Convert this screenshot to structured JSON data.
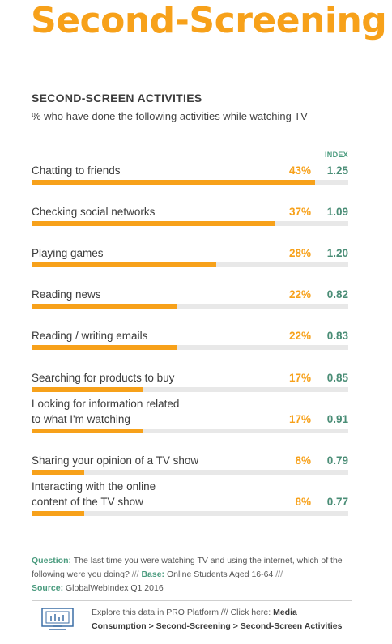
{
  "page": {
    "title": "Second-Screening"
  },
  "chart_data": {
    "type": "bar",
    "title": "SECOND-SCREEN ACTIVITIES",
    "subtitle": "% who have done the following activities while watching TV",
    "index_header": "INDEX",
    "xlim": [
      0,
      100
    ],
    "categories": [
      "Chatting to friends",
      "Checking social networks",
      "Playing games",
      "Reading news",
      "Reading / writing emails",
      "Searching for products to buy",
      "Looking for information related to what I'm watching",
      "Sharing your opinion of a TV show",
      "Interacting with the online content of the TV show"
    ],
    "series": [
      {
        "values": [
          43,
          37,
          28,
          22,
          22,
          17,
          17,
          8,
          8
        ]
      },
      {
        "values": [
          1.25,
          1.09,
          1.2,
          0.82,
          0.83,
          0.85,
          0.91,
          0.79,
          0.77
        ]
      }
    ],
    "rows": [
      {
        "label": "Chatting to friends",
        "pct": 43,
        "pct_label": "43%",
        "index": "1.25"
      },
      {
        "label": "Checking social networks",
        "pct": 37,
        "pct_label": "37%",
        "index": "1.09"
      },
      {
        "label": "Playing games",
        "pct": 28,
        "pct_label": "28%",
        "index": "1.20"
      },
      {
        "label": "Reading news",
        "pct": 22,
        "pct_label": "22%",
        "index": "0.82"
      },
      {
        "label": "Reading / writing emails",
        "pct": 22,
        "pct_label": "22%",
        "index": "0.83"
      },
      {
        "label": "Searching for products to buy",
        "pct": 17,
        "pct_label": "17%",
        "index": "0.85"
      },
      {
        "label": "Looking for information related\nto what I'm watching",
        "pct": 17,
        "pct_label": "17%",
        "index": "0.91"
      },
      {
        "label": "Sharing your opinion of a TV show",
        "pct": 8,
        "pct_label": "8%",
        "index": "0.79"
      },
      {
        "label": "Interacting with the online\ncontent of the TV show",
        "pct": 8,
        "pct_label": "8%",
        "index": "0.77"
      }
    ],
    "colors": {
      "bar": "#f7a11a",
      "track": "#e8e8e8",
      "index": "#4a8d76"
    }
  },
  "footer": {
    "question_label": "Question:",
    "question_text": "The last time you were watching TV and using the internet, which of the following were you doing?",
    "sep1": "///",
    "base_label": "Base:",
    "base_text": "Online Students Aged 16-64",
    "sep2": "///",
    "source_label": "Source:",
    "source_text": "GlobalWebIndex Q1 2016"
  },
  "explore": {
    "icon": "dashboard-chart-icon",
    "text": "Explore this data in PRO Platform /// Click here:",
    "link": "Media Consumption > Second-Screening > Second-Screen Activities"
  }
}
